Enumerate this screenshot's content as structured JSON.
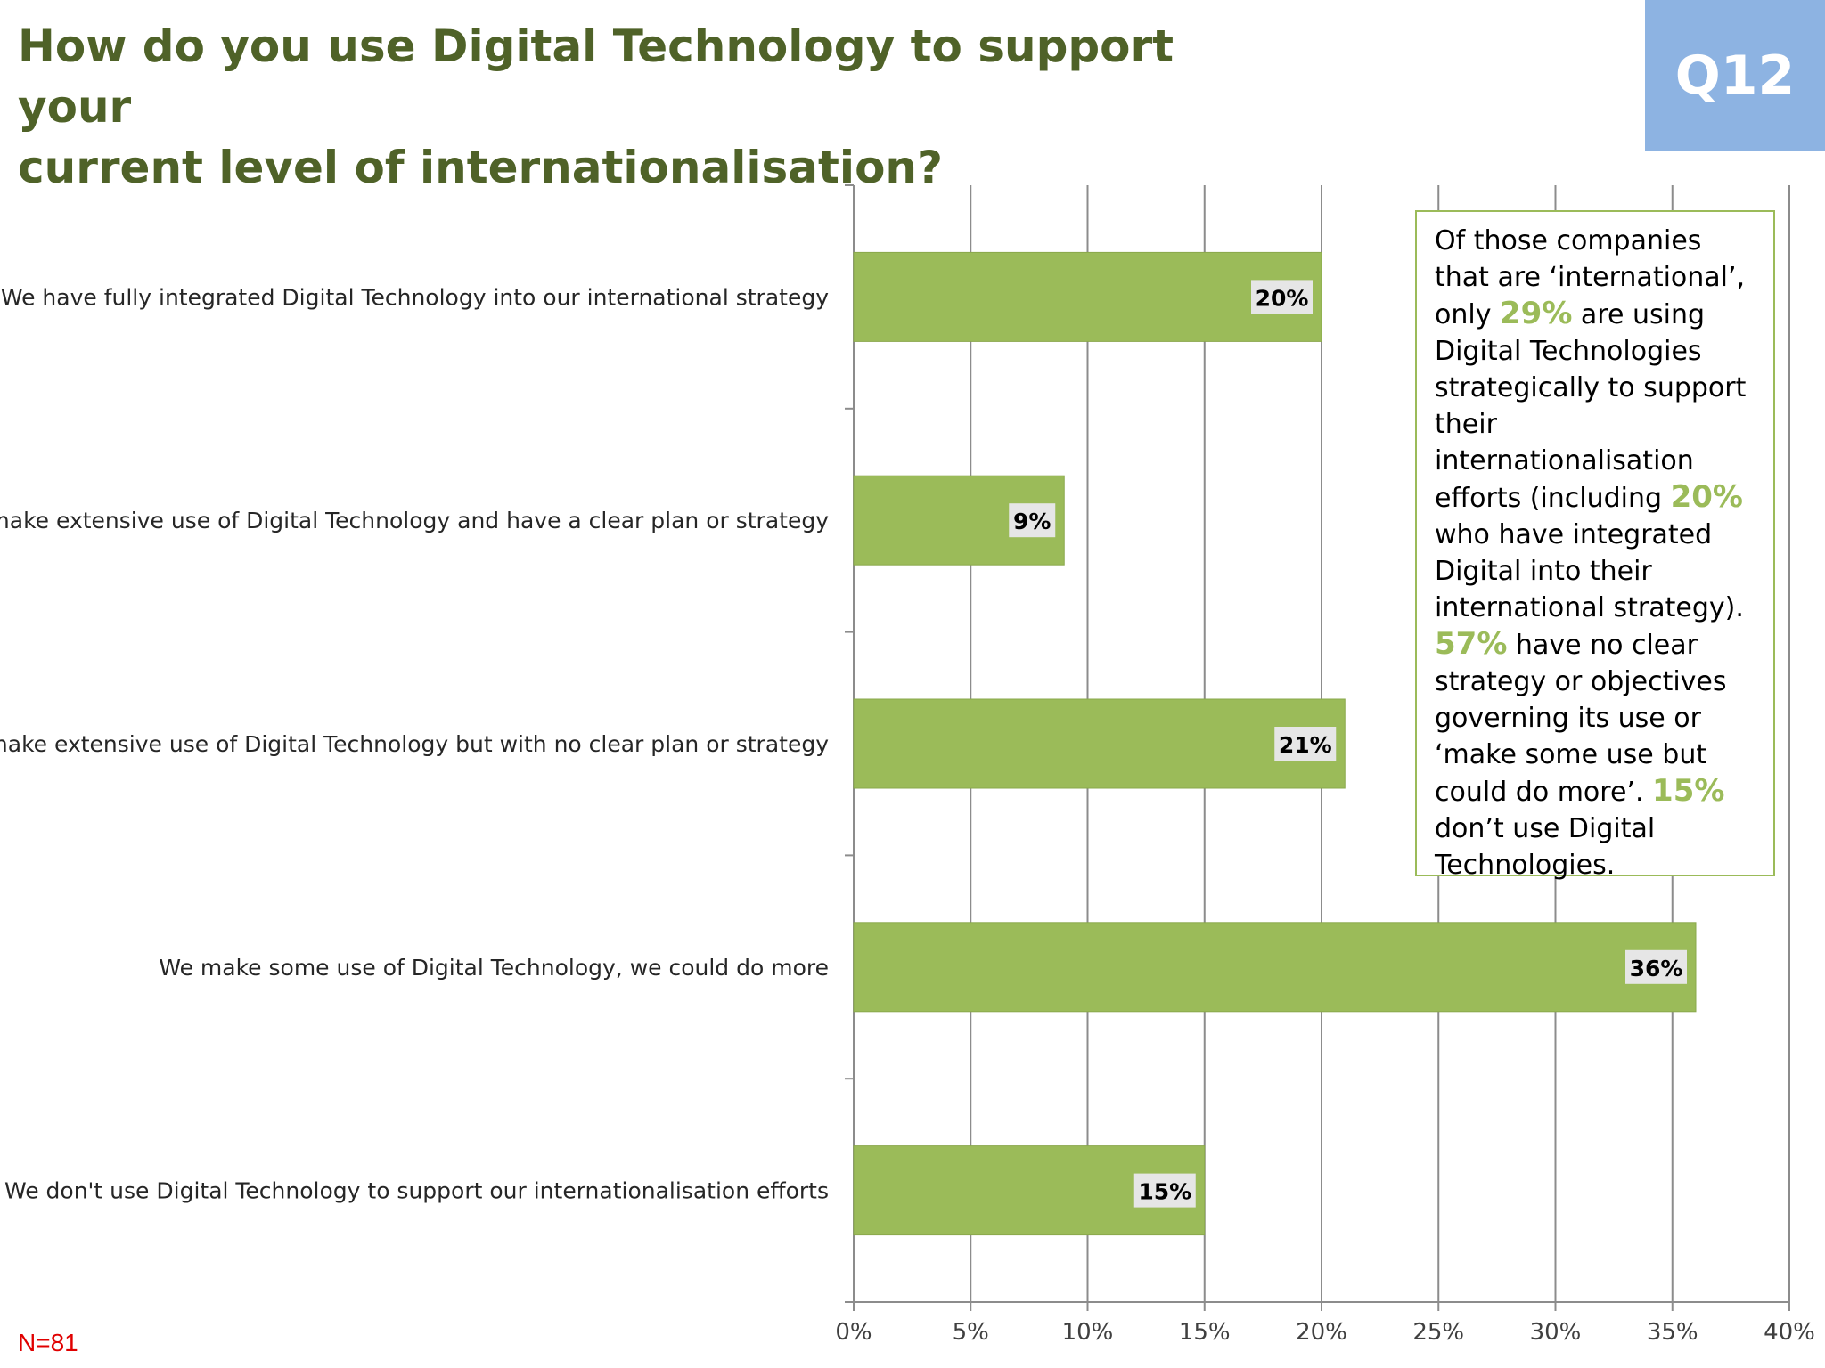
{
  "header": {
    "title_line1": "How do you use Digital Technology to support your",
    "title_line2": "current level of internationalisation?",
    "badge": "Q12"
  },
  "colors": {
    "title": "#4f6228",
    "bar": "#9bbb59",
    "badge_bg": "#8db3e2",
    "highlight": "#9bbb59",
    "sample_size": "#e00000"
  },
  "chart_data": {
    "type": "bar",
    "orientation": "horizontal",
    "categories": [
      "We have fully integrated Digital Technology into our international strategy",
      "We make extensive use of Digital Technology and have a clear plan or strategy",
      "We make extensive use of Digital Technology but with no clear plan or strategy",
      "We make some use of Digital Technology, we could do more",
      "We don't use Digital Technology to support our internationalisation efforts"
    ],
    "values": [
      20,
      9,
      21,
      36,
      15
    ],
    "data_labels": [
      "20%",
      "9%",
      "21%",
      "36%",
      "15%"
    ],
    "xlim": [
      0,
      40
    ],
    "x_ticks": [
      0,
      5,
      10,
      15,
      20,
      25,
      30,
      35,
      40
    ],
    "x_tick_labels": [
      "0%",
      "5%",
      "10%",
      "15%",
      "20%",
      "25%",
      "30%",
      "35%",
      "40%"
    ],
    "grid": true,
    "title": "",
    "xlabel": "",
    "ylabel": ""
  },
  "note": {
    "p1": "Of those companies that are ‘international’, only ",
    "hl1": "29%",
    "p2": " are using Digital Technologies strategically  to support their internationalisation efforts (including ",
    "hl2": "20%",
    "p3": " who have integrated Digital into their international strategy). ",
    "hl3": "57%",
    "p4": " have no clear strategy or objectives governing its use or ‘make some use but could do more’. ",
    "hl4": "15%",
    "p5": " don’t use Digital Technologies."
  },
  "sample_size": "N=81"
}
